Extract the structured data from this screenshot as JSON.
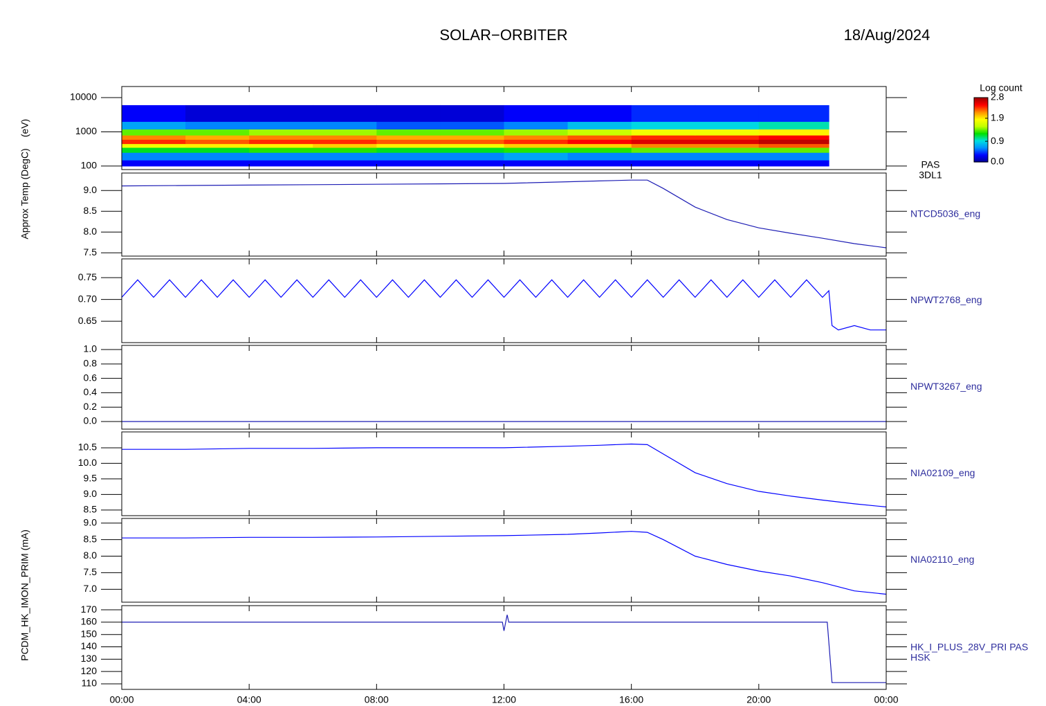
{
  "header": {
    "title": "SOLAR−ORBITER",
    "date": "18/Aug/2024"
  },
  "xaxis": {
    "xlim": [
      0,
      24
    ],
    "xticks": [
      {
        "value": 0,
        "label": "00:00"
      },
      {
        "value": 4,
        "label": "04:00"
      },
      {
        "value": 8,
        "label": "08:00"
      },
      {
        "value": 12,
        "label": "12:00"
      },
      {
        "value": 16,
        "label": "16:00"
      },
      {
        "value": 20,
        "label": "20:00"
      },
      {
        "value": 24,
        "label": "00:00"
      }
    ]
  },
  "chart_data": [
    {
      "type": "heatmap",
      "ylabel": "(eV)",
      "name_lines": [
        "PAS",
        "3DL1"
      ],
      "log_y": true,
      "ylim": [
        79,
        21000
      ],
      "yticks": [
        100,
        1000,
        10000
      ],
      "xbins": [
        0,
        2,
        4,
        6,
        8,
        10,
        12,
        14,
        16,
        18,
        20,
        22.2
      ],
      "ybins": [
        100,
        150,
        250,
        350,
        450,
        600,
        800,
        1200,
        2000,
        6000
      ],
      "z": [
        [
          0.3,
          0.3,
          0.3,
          0.3,
          0.3,
          0.3,
          0.3,
          0.3,
          0.3,
          0.3,
          0.3
        ],
        [
          0.6,
          0.6,
          0.6,
          0.6,
          0.6,
          0.6,
          0.7,
          0.6,
          0.6,
          0.6,
          0.6
        ],
        [
          1.2,
          1.2,
          1.3,
          1.3,
          1.2,
          1.2,
          1.3,
          1.3,
          1.4,
          1.4,
          1.4
        ],
        [
          1.8,
          1.9,
          1.9,
          2.0,
          1.9,
          1.8,
          2.0,
          2.0,
          2.2,
          2.2,
          2.3
        ],
        [
          2.4,
          2.3,
          2.4,
          2.4,
          2.3,
          2.3,
          2.4,
          2.5,
          2.6,
          2.6,
          2.7
        ],
        [
          2.2,
          2.1,
          2.2,
          2.2,
          2.1,
          2.1,
          2.2,
          2.3,
          2.4,
          2.4,
          2.5
        ],
        [
          1.4,
          1.4,
          1.5,
          1.5,
          1.4,
          1.4,
          1.5,
          1.6,
          1.8,
          1.8,
          1.9
        ],
        [
          0.7,
          0.6,
          0.6,
          0.6,
          0.5,
          0.5,
          0.6,
          0.8,
          0.9,
          0.9,
          1.0
        ],
        [
          0.3,
          0.2,
          0.2,
          0.2,
          0.2,
          0.2,
          0.3,
          0.3,
          0.4,
          0.4,
          0.4
        ]
      ],
      "colorbar_label": "Log count",
      "clim": [
        0,
        2.8
      ],
      "cticks": [
        {
          "value": 0,
          "label": "0.0"
        },
        0.9,
        1.9,
        2.8
      ],
      "colormap": [
        "#000090",
        "#0000ff",
        "#0090ff",
        "#00e0e0",
        "#00e000",
        "#c0ff00",
        "#ffff00",
        "#ff9000",
        "#ff0000",
        "#a00000"
      ]
    },
    {
      "type": "line",
      "ylabel": "Approx Temp (DegC)",
      "name_lines": [
        "NTCD5036_eng"
      ],
      "color": "#1c1cb4",
      "ylim": [
        7.42,
        9.42
      ],
      "yticks": [
        7.5,
        {
          "value": 8,
          "label": "8.0"
        },
        8.5,
        {
          "value": 9,
          "label": "9.0"
        }
      ],
      "x": [
        0,
        2,
        4,
        6,
        8,
        10,
        12,
        14,
        15,
        16,
        16.5,
        17,
        18,
        19,
        20,
        21,
        22,
        23,
        24
      ],
      "values": [
        9.11,
        9.12,
        9.13,
        9.14,
        9.15,
        9.16,
        9.17,
        9.21,
        9.23,
        9.25,
        9.25,
        9.05,
        8.6,
        8.3,
        8.1,
        7.97,
        7.85,
        7.72,
        7.62
      ]
    },
    {
      "type": "line",
      "name_lines": [
        "NPWT2768_eng"
      ],
      "color": "#0000ff",
      "ylim": [
        0.601,
        0.793
      ],
      "yticks": [
        0.65,
        {
          "value": 0.7,
          "label": "0.70"
        },
        0.75
      ],
      "x": [
        0,
        0.5,
        1,
        1.5,
        2,
        2.5,
        3,
        3.5,
        4,
        4.5,
        5,
        5.5,
        6,
        6.5,
        7,
        7.5,
        8,
        8.5,
        9,
        9.5,
        10,
        10.5,
        11,
        11.5,
        12,
        12.5,
        13,
        13.5,
        14,
        14.5,
        15,
        15.5,
        16,
        16.5,
        17,
        17.5,
        18,
        18.5,
        19,
        19.5,
        20,
        20.5,
        21,
        21.5,
        22,
        22.2,
        22.3,
        22.5,
        23,
        23.5,
        24
      ],
      "values": [
        0.705,
        0.745,
        0.705,
        0.745,
        0.705,
        0.745,
        0.705,
        0.745,
        0.705,
        0.745,
        0.705,
        0.745,
        0.705,
        0.745,
        0.705,
        0.745,
        0.705,
        0.745,
        0.705,
        0.745,
        0.705,
        0.745,
        0.705,
        0.745,
        0.705,
        0.745,
        0.705,
        0.745,
        0.705,
        0.745,
        0.705,
        0.745,
        0.705,
        0.745,
        0.705,
        0.745,
        0.705,
        0.745,
        0.705,
        0.745,
        0.705,
        0.745,
        0.705,
        0.745,
        0.705,
        0.72,
        0.64,
        0.63,
        0.64,
        0.63,
        0.63
      ]
    },
    {
      "type": "line",
      "name_lines": [
        "NPWT3267_eng"
      ],
      "color": "#1c1cb4",
      "ylim": [
        -0.106,
        1.058
      ],
      "yticks": [
        {
          "value": 0,
          "label": "0.0"
        },
        0.2,
        0.4,
        0.6,
        0.8,
        {
          "value": 1,
          "label": "1.0"
        }
      ],
      "x": [
        0,
        24
      ],
      "values": [
        0,
        0
      ]
    },
    {
      "type": "line",
      "name_lines": [
        "NIA02109_eng"
      ],
      "color": "#0000ff",
      "ylim": [
        8.32,
        11.01
      ],
      "yticks": [
        8.5,
        {
          "value": 9,
          "label": "9.0"
        },
        9.5,
        {
          "value": 10,
          "label": "10.0"
        },
        10.5
      ],
      "x": [
        0,
        2,
        4,
        6,
        8,
        10,
        12,
        14,
        15,
        16,
        16.5,
        17,
        18,
        19,
        20,
        21,
        22,
        23,
        24
      ],
      "values": [
        10.45,
        10.45,
        10.48,
        10.48,
        10.5,
        10.5,
        10.5,
        10.55,
        10.58,
        10.62,
        10.6,
        10.3,
        9.7,
        9.35,
        9.1,
        8.95,
        8.82,
        8.7,
        8.6
      ]
    },
    {
      "type": "line",
      "name_lines": [
        "NIA02110_eng"
      ],
      "color": "#0000ff",
      "ylim": [
        6.61,
        9.14
      ],
      "yticks": [
        {
          "value": 7,
          "label": "7.0"
        },
        7.5,
        {
          "value": 8,
          "label": "8.0"
        },
        8.5,
        {
          "value": 9,
          "label": "9.0"
        }
      ],
      "x": [
        0,
        2,
        4,
        6,
        8,
        10,
        12,
        14,
        15,
        16,
        16.5,
        17,
        18,
        19,
        20,
        21,
        22,
        23,
        24
      ],
      "values": [
        8.55,
        8.55,
        8.57,
        8.57,
        8.58,
        8.6,
        8.62,
        8.66,
        8.7,
        8.75,
        8.72,
        8.5,
        8.0,
        7.75,
        7.55,
        7.4,
        7.2,
        6.95,
        6.85
      ]
    },
    {
      "type": "line",
      "ylabel": "PCDM_HK_IMON_PRIM (mA)",
      "name_lines": [
        "HK_I_PLUS_28V_PRI PAS",
        "HSK"
      ],
      "color": "#1c1cb4",
      "ylim": [
        105.5,
        173.4
      ],
      "yticks": [
        110,
        120,
        130,
        140,
        150,
        160,
        170
      ],
      "x": [
        0,
        11.95,
        12.0,
        12.1,
        12.15,
        22.15,
        22.3,
        24
      ],
      "values": [
        160,
        160,
        153,
        166,
        160,
        160,
        111,
        111
      ]
    }
  ]
}
